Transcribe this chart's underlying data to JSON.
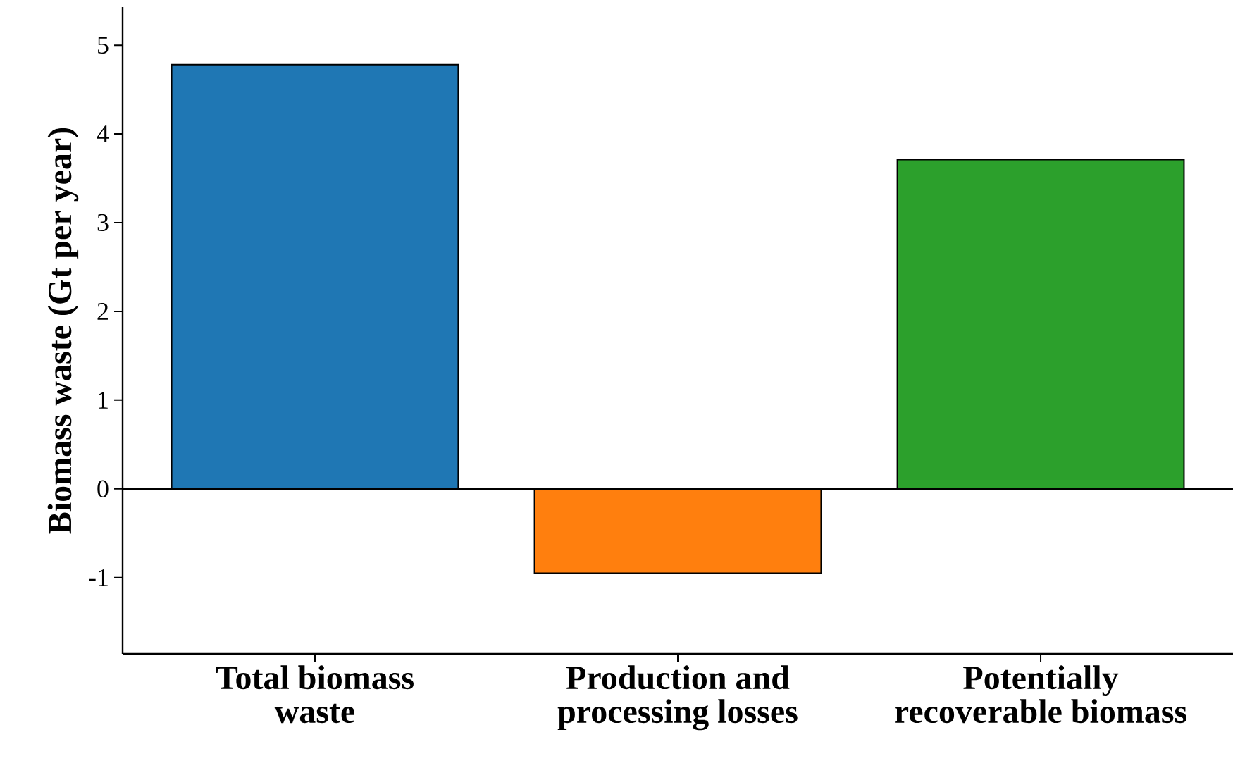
{
  "chart_data": {
    "type": "bar",
    "ylabel": "Biomass waste (Gt per year)",
    "categories": [
      "Total biomass waste",
      "Production and processing losses",
      "Potentially recoverable biomass"
    ],
    "values": [
      4.78,
      -0.95,
      3.71
    ],
    "colors": [
      "#1f77b4",
      "#ff7f0e",
      "#2ca02c"
    ],
    "ylim": [
      -1.86,
      5.43
    ],
    "yticks": [
      -1,
      0,
      1,
      2,
      3,
      4,
      5
    ],
    "ref_lines": [
      {
        "axis": "y",
        "value": 0,
        "color": "#000000"
      }
    ],
    "grid": false
  }
}
